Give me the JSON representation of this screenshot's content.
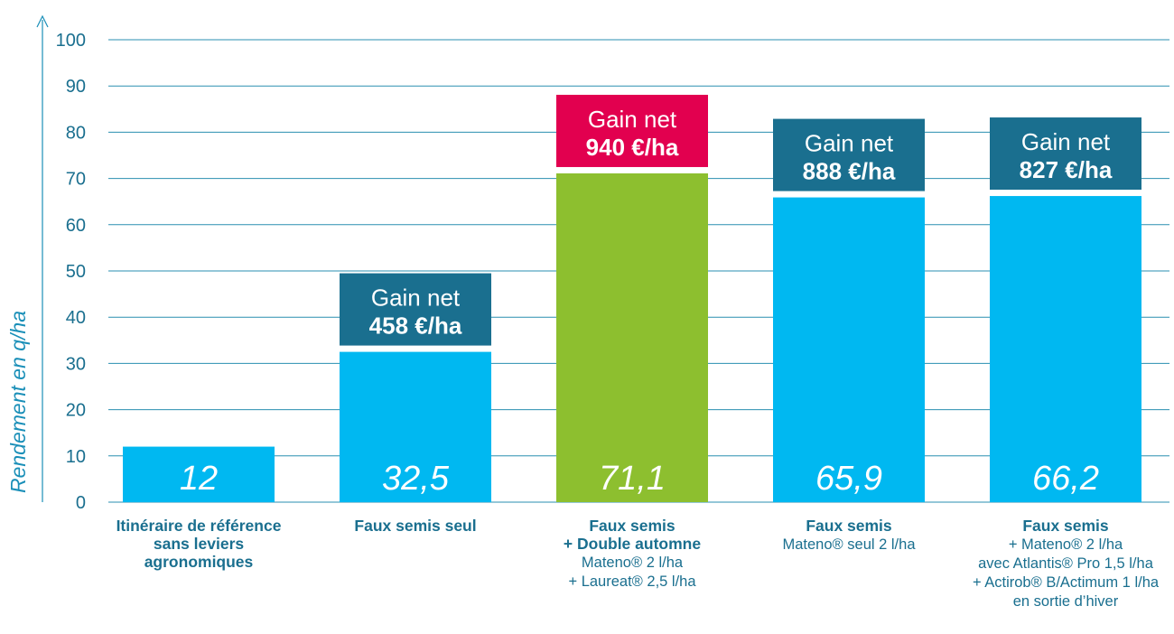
{
  "chart_data": {
    "type": "bar",
    "ylabel": "Rendement en q/ha",
    "ylim": [
      0,
      100
    ],
    "yticks": [
      "0",
      "10",
      "20",
      "30",
      "40",
      "50",
      "60",
      "70",
      "80",
      "90",
      "100"
    ],
    "grid": true,
    "categories": [
      {
        "lines": [
          {
            "text": "Itinéraire de référence",
            "bold": true
          },
          {
            "text": "sans leviers",
            "bold": true
          },
          {
            "text": "agronomiques",
            "bold": true
          }
        ]
      },
      {
        "lines": [
          {
            "text": "Faux semis seul",
            "bold": true
          }
        ]
      },
      {
        "lines": [
          {
            "text": "Faux semis",
            "bold": true
          },
          {
            "text": "+ Double automne",
            "bold": true
          },
          {
            "text": "Mateno® 2 l/ha",
            "bold": false
          },
          {
            "text": "+ Laureat® 2,5 l/ha",
            "bold": false
          }
        ]
      },
      {
        "lines": [
          {
            "text": "Faux semis",
            "bold": true
          },
          {
            "text": "Mateno® seul 2 l/ha",
            "bold": false
          }
        ]
      },
      {
        "lines": [
          {
            "text": "Faux semis",
            "bold": true
          },
          {
            "text": "+ Mateno® 2 l/ha",
            "bold": false
          },
          {
            "text": "avec Atlantis® Pro 1,5 l/ha",
            "bold": false
          },
          {
            "text": "+ Actirob® B/Actimum 1 l/ha",
            "bold": false
          },
          {
            "text": "en sortie d’hiver",
            "bold": false
          }
        ]
      }
    ],
    "values": [
      12,
      32.5,
      71.1,
      65.9,
      66.2
    ],
    "value_labels": [
      "12",
      "32,5",
      "71,1",
      "65,9",
      "66,2"
    ],
    "bar_colors": [
      "#00b8f1",
      "#00b8f1",
      "#8dbf2f",
      "#00b8f1",
      "#00b8f1"
    ],
    "gains": [
      null,
      {
        "line1": "Gain net",
        "line2": "458 €/ha",
        "color": "#1a6f8f"
      },
      {
        "line1": "Gain net",
        "line2": "940 €/ha",
        "color": "#e2004f"
      },
      {
        "line1": "Gain net",
        "line2": "888 €/ha",
        "color": "#1a6f8f"
      },
      {
        "line1": "Gain net",
        "line2": "827 €/ha",
        "color": "#1a6f8f"
      }
    ]
  }
}
